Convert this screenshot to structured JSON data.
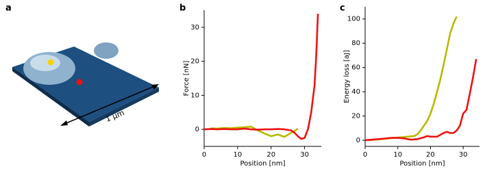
{
  "panel_a": {
    "label": "a",
    "scale_label": "1 μm"
  },
  "chart_data": [
    {
      "type": "line",
      "panel_label": "b",
      "x_label": "Position [nm]",
      "y_label": "Force [nN]",
      "xlim": [
        0,
        35
      ],
      "xticks": [
        0,
        10,
        20,
        30
      ],
      "ylim": [
        -5,
        35
      ],
      "yticks": [
        0,
        10,
        20,
        30
      ],
      "series": [
        {
          "color": "#b8b800",
          "x": [
            2,
            4,
            6,
            8,
            10,
            12,
            14,
            16,
            18,
            20,
            22,
            24,
            26,
            27,
            28
          ],
          "values": [
            0.3,
            0.2,
            0.4,
            0.3,
            0.5,
            0.6,
            0.8,
            -0.3,
            -1.2,
            -2,
            -1.5,
            -2.2,
            -1,
            -0.5,
            0.2
          ]
        },
        {
          "color": "#ee1111",
          "x": [
            0,
            2,
            4,
            6,
            8,
            10,
            12,
            14,
            16,
            18,
            20,
            22,
            24,
            26,
            27,
            28,
            29,
            30,
            31,
            32,
            33,
            33.5,
            34
          ],
          "values": [
            0,
            0.1,
            0,
            0.1,
            0,
            0,
            0.2,
            0,
            -0.1,
            0,
            0,
            0.1,
            0,
            -0.3,
            -1,
            -2,
            -2.8,
            -2.5,
            0,
            5,
            13,
            22,
            34
          ]
        }
      ]
    },
    {
      "type": "line",
      "panel_label": "c",
      "x_label": "Position [nm]",
      "y_label": "Energy loss [aJ]",
      "xlim": [
        0,
        35
      ],
      "xticks": [
        0,
        10,
        20,
        30
      ],
      "ylim": [
        -5,
        110
      ],
      "yticks": [
        0,
        20,
        40,
        60,
        80,
        100
      ],
      "series": [
        {
          "color": "#b8b800",
          "x": [
            1,
            3,
            5,
            7,
            9,
            11,
            13,
            15,
            16,
            17,
            18,
            19,
            20,
            21,
            22,
            23,
            24,
            25,
            26,
            27,
            28
          ],
          "values": [
            0,
            0.5,
            1,
            1.5,
            2,
            2.5,
            3,
            3.5,
            5,
            8,
            12,
            16,
            22,
            30,
            40,
            50,
            62,
            75,
            88,
            96,
            102
          ]
        },
        {
          "color": "#ee1111",
          "x": [
            0,
            2,
            4,
            6,
            8,
            10,
            12,
            14,
            16,
            18,
            19,
            20,
            22,
            24,
            25,
            26,
            27,
            28,
            29,
            30,
            31,
            32,
            33,
            34
          ],
          "values": [
            0,
            0.5,
            1,
            1.5,
            2,
            2,
            1.5,
            0.5,
            1,
            2.5,
            3.5,
            3,
            3,
            6,
            7,
            6,
            6,
            8,
            12,
            22,
            25,
            38,
            52,
            67
          ]
        }
      ]
    }
  ]
}
